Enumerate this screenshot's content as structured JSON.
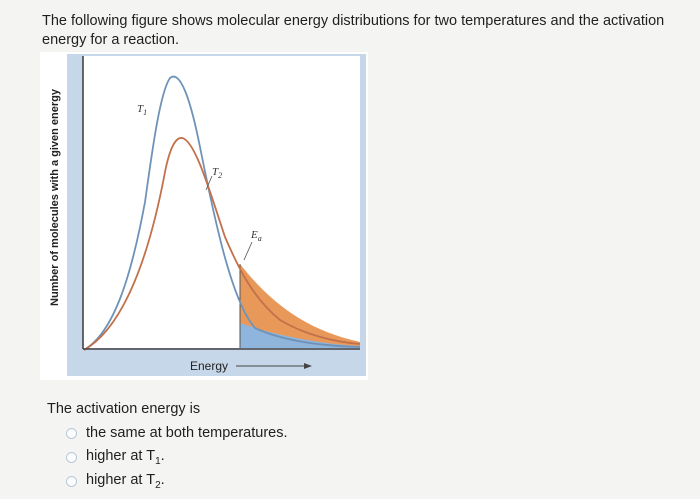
{
  "intro_text": "The following figure shows molecular energy distributions for two temperatures and the activation energy for a reaction.",
  "figure": {
    "y_axis_label": "Number of molecules with a given energy",
    "x_axis_label": "Energy",
    "curve_t1_label": "T",
    "curve_t1_sub": "1",
    "curve_t2_label": "T",
    "curve_t2_sub": "2",
    "ea_label": "E",
    "ea_sub": "a",
    "colors": {
      "frame": "#c7d7ea",
      "t1_curve": "#6f93b8",
      "t2_curve": "#c2714a",
      "t2_tail_fill": "#e8995a",
      "t1_tail_fill": "#8fb5dc",
      "axis": "#444444"
    }
  },
  "question": {
    "prompt": "The activation energy is",
    "options": [
      {
        "text": "the same at both temperatures.",
        "sub": "",
        "suffix": ""
      },
      {
        "text": "higher at T",
        "sub": "1",
        "suffix": "."
      },
      {
        "text": "higher at T",
        "sub": "2",
        "suffix": "."
      }
    ]
  }
}
